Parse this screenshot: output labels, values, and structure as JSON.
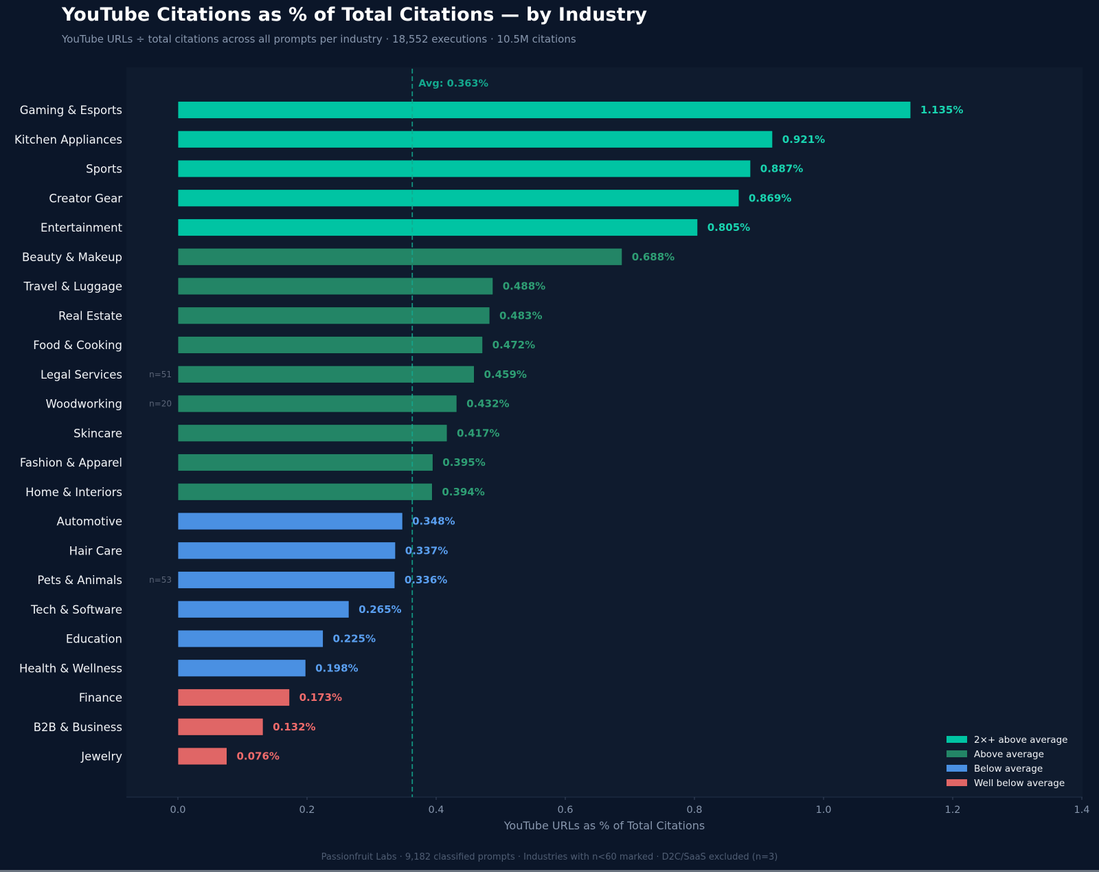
{
  "header": {
    "title": "YouTube Citations as % of Total Citations — by Industry",
    "subtitle": "YouTube URLs ÷ total citations across all prompts per industry  ·  18,552 executions  ·  10.5M citations"
  },
  "footer": "Passionfruit Labs  ·  9,182 classified prompts  ·  Industries with n<60 marked  ·  D2C/SaaS excluded (n=3)",
  "colors": {
    "background": "#0b1629",
    "plot_background": "#0f1b2e",
    "tier_2x_above": "#00c4a3",
    "tier_above": "#238566",
    "tier_below": "#4a90e2",
    "tier_well_below": "#e06666",
    "label_2x_above": "#19d4b0",
    "label_above": "#2e9e74",
    "label_below": "#5a9ff0",
    "label_well_below": "#ef6b6b",
    "avg_line": "#14a88e"
  },
  "chart_data": {
    "type": "bar",
    "orientation": "horizontal",
    "title": "YouTube Citations as % of Total Citations — by Industry",
    "xlabel": "YouTube URLs as % of Total Citations",
    "ylabel": "",
    "xlim": [
      0,
      1.4
    ],
    "xticks": [
      "0.0",
      "0.2",
      "0.4",
      "0.6",
      "0.8",
      "1.0",
      "1.2",
      "1.4"
    ],
    "tick_values": [
      0,
      0.2,
      0.4,
      0.6,
      0.8,
      1.0,
      1.2,
      1.4
    ],
    "grid": false,
    "average": {
      "value": 0.363,
      "label": "Avg: 0.363%"
    },
    "legend_position": "bottom-right",
    "legend": [
      {
        "tier": "tier_2x_above",
        "label": "2×+ above average"
      },
      {
        "tier": "tier_above",
        "label": "Above average"
      },
      {
        "tier": "tier_below",
        "label": "Below average"
      },
      {
        "tier": "tier_well_below",
        "label": "Well below average"
      }
    ],
    "categories": [
      "Gaming & Esports",
      "Kitchen Appliances",
      "Sports",
      "Creator Gear",
      "Entertainment",
      "Beauty & Makeup",
      "Travel & Luggage",
      "Real Estate",
      "Food & Cooking",
      "Legal Services",
      "Woodworking",
      "Skincare",
      "Fashion & Apparel",
      "Home & Interiors",
      "Automotive",
      "Hair Care",
      "Pets & Animals",
      "Tech & Software",
      "Education",
      "Health & Wellness",
      "Finance",
      "B2B & Business",
      "Jewelry"
    ],
    "values": [
      1.135,
      0.921,
      0.887,
      0.869,
      0.805,
      0.688,
      0.488,
      0.483,
      0.472,
      0.459,
      0.432,
      0.417,
      0.395,
      0.394,
      0.348,
      0.337,
      0.336,
      0.265,
      0.225,
      0.198,
      0.173,
      0.132,
      0.076
    ],
    "value_labels": [
      "1.135%",
      "0.921%",
      "0.887%",
      "0.869%",
      "0.805%",
      "0.688%",
      "0.488%",
      "0.483%",
      "0.472%",
      "0.459%",
      "0.432%",
      "0.417%",
      "0.395%",
      "0.394%",
      "0.348%",
      "0.337%",
      "0.336%",
      "0.265%",
      "0.225%",
      "0.198%",
      "0.173%",
      "0.132%",
      "0.076%"
    ],
    "tiers": [
      "tier_2x_above",
      "tier_2x_above",
      "tier_2x_above",
      "tier_2x_above",
      "tier_2x_above",
      "tier_above",
      "tier_above",
      "tier_above",
      "tier_above",
      "tier_above",
      "tier_above",
      "tier_above",
      "tier_above",
      "tier_above",
      "tier_below",
      "tier_below",
      "tier_below",
      "tier_below",
      "tier_below",
      "tier_below",
      "tier_well_below",
      "tier_well_below",
      "tier_well_below"
    ],
    "sample_size_notes": [
      "",
      "",
      "",
      "",
      "",
      "",
      "",
      "",
      "",
      "n=51",
      "n=20",
      "",
      "",
      "",
      "",
      "",
      "n=53",
      "",
      "",
      "",
      "",
      "",
      ""
    ]
  }
}
